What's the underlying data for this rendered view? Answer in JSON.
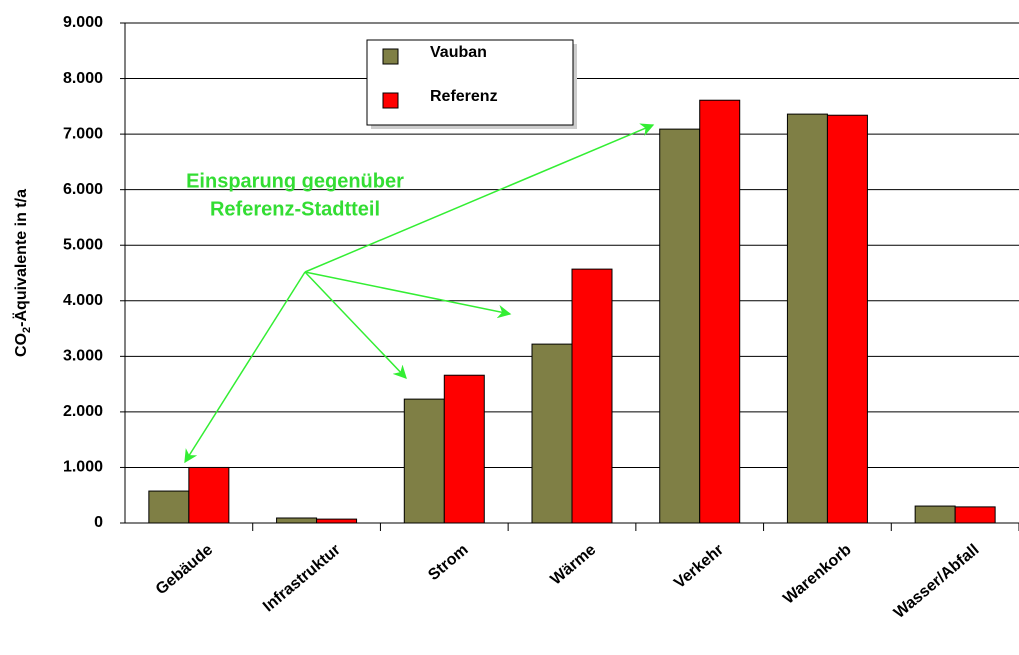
{
  "chart_data": {
    "type": "bar",
    "ylabel": [
      "CO",
      "2",
      "-Äquivalente in t/a"
    ],
    "categories": [
      "Gebäude",
      "Infrastruktur",
      "Strom",
      "Wärme",
      "Verkehr",
      "Warenkorb",
      "Wasser/Abfall"
    ],
    "series": [
      {
        "name": "Vauban",
        "color": "#7f7f45",
        "values": [
          575,
          90,
          2230,
          3220,
          7090,
          7360,
          305
        ]
      },
      {
        "name": "Referenz",
        "color": "#ff0000",
        "values": [
          1000,
          70,
          2660,
          4570,
          7610,
          7340,
          290
        ]
      }
    ],
    "ylim": [
      0,
      9000
    ],
    "yticks": [
      0,
      {
        "value": 1000,
        "label": "1.000"
      },
      {
        "value": 2000,
        "label": "2.000"
      },
      {
        "value": 3000,
        "label": "3.000"
      },
      {
        "value": 4000,
        "label": "4.000"
      },
      {
        "value": 5000,
        "label": "5.000"
      },
      {
        "value": 6000,
        "label": "6.000"
      },
      {
        "value": 7000,
        "label": "7.000"
      },
      {
        "value": 8000,
        "label": "8.000"
      },
      {
        "value": 9000,
        "label": "9.000"
      }
    ],
    "grid": true,
    "annotation": [
      "Einsparung gegenüber",
      "Referenz-Stadtteil"
    ],
    "annotation_color": "#33dd33"
  }
}
